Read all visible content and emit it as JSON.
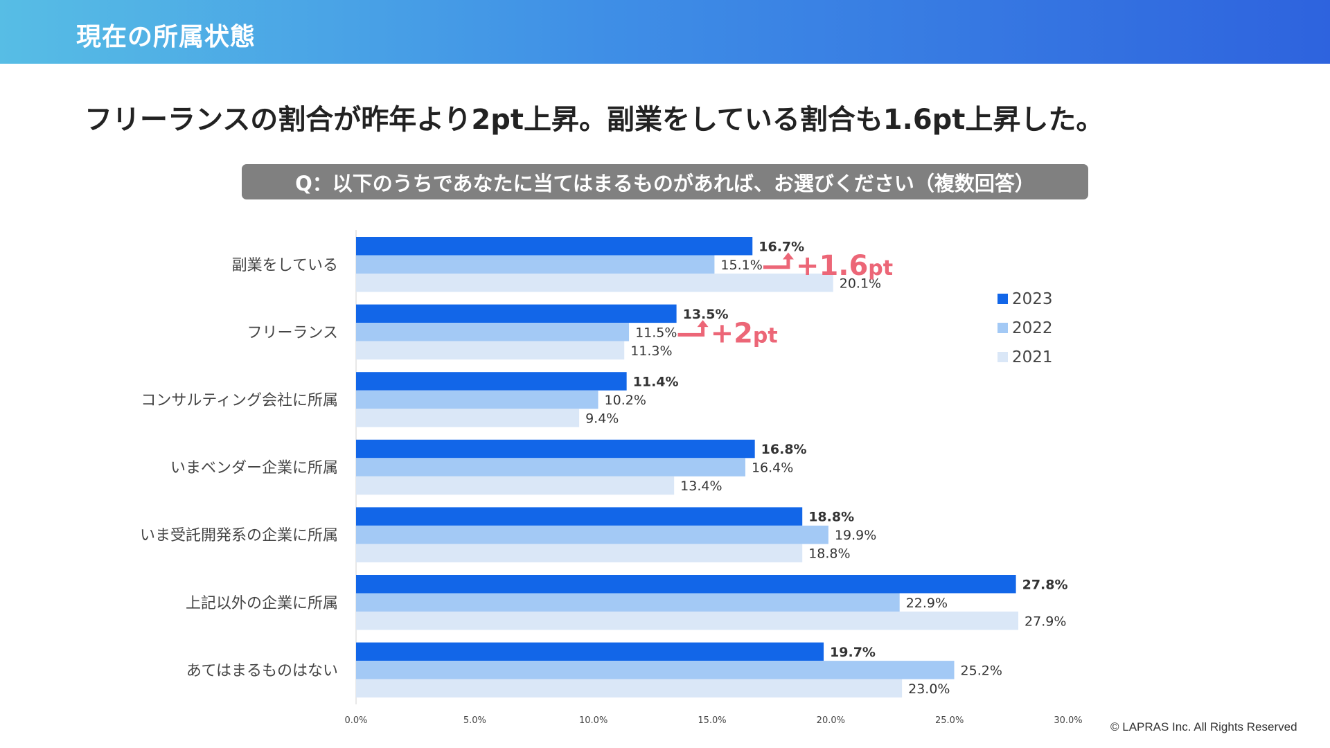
{
  "header": {
    "title": "現在の所属状態"
  },
  "headline": "フリーランスの割合が昨年より2pt上昇。副業をしている割合も1.6pt上昇した。",
  "question": "Q：以下のうちであなたに当てはまるものがあれば、お選びください（複数回答）",
  "copyright": "© LAPRAS Inc. All Rights Reserved",
  "colors": {
    "s2023": "#1266e8",
    "s2022": "#a3c9f5",
    "s2021": "#dae7f7",
    "annotation": "#ec6677"
  },
  "chart_data": {
    "type": "bar",
    "orientation": "horizontal",
    "categories": [
      "副業をしている",
      "フリーランス",
      "コンサルティング会社に所属",
      "いまベンダー企業に所属",
      "いま受託開発系の企業に所属",
      "上記以外の企業に所属",
      "あてはまるものはない"
    ],
    "series": [
      {
        "name": "2023",
        "values": [
          16.7,
          13.5,
          11.4,
          16.8,
          18.8,
          27.8,
          19.7
        ],
        "labels": [
          "16.7%",
          "13.5%",
          "11.4%",
          "16.8%",
          "18.8%",
          "27.8%",
          "19.7%"
        ]
      },
      {
        "name": "2022",
        "values": [
          15.1,
          11.5,
          10.2,
          16.4,
          19.9,
          22.9,
          25.2
        ],
        "labels": [
          "15.1%",
          "11.5%",
          "10.2%",
          "16.4%",
          "19.9%",
          "22.9%",
          "25.2%"
        ]
      },
      {
        "name": "2021",
        "values": [
          20.1,
          11.3,
          9.4,
          13.4,
          18.8,
          27.9,
          23.0
        ],
        "labels": [
          "20.1%",
          "11.3%",
          "9.4%",
          "13.4%",
          "18.8%",
          "27.9%",
          "23.0%"
        ]
      }
    ],
    "xlim": [
      0,
      30
    ],
    "xticks": [
      0,
      5,
      10,
      15,
      20,
      25,
      30
    ],
    "xtick_labels": [
      "0.0%",
      "5.0%",
      "10.0%",
      "15.0%",
      "20.0%",
      "25.0%",
      "30.0%"
    ],
    "legend": [
      "2023",
      "2022",
      "2021"
    ],
    "legend_position": "right",
    "annotations": [
      {
        "category_index": 0,
        "text": "+1.6pt",
        "big": "+1.6",
        "small": "pt"
      },
      {
        "category_index": 1,
        "text": "+2pt",
        "big": "+2",
        "small": "pt"
      }
    ],
    "grid": false
  }
}
